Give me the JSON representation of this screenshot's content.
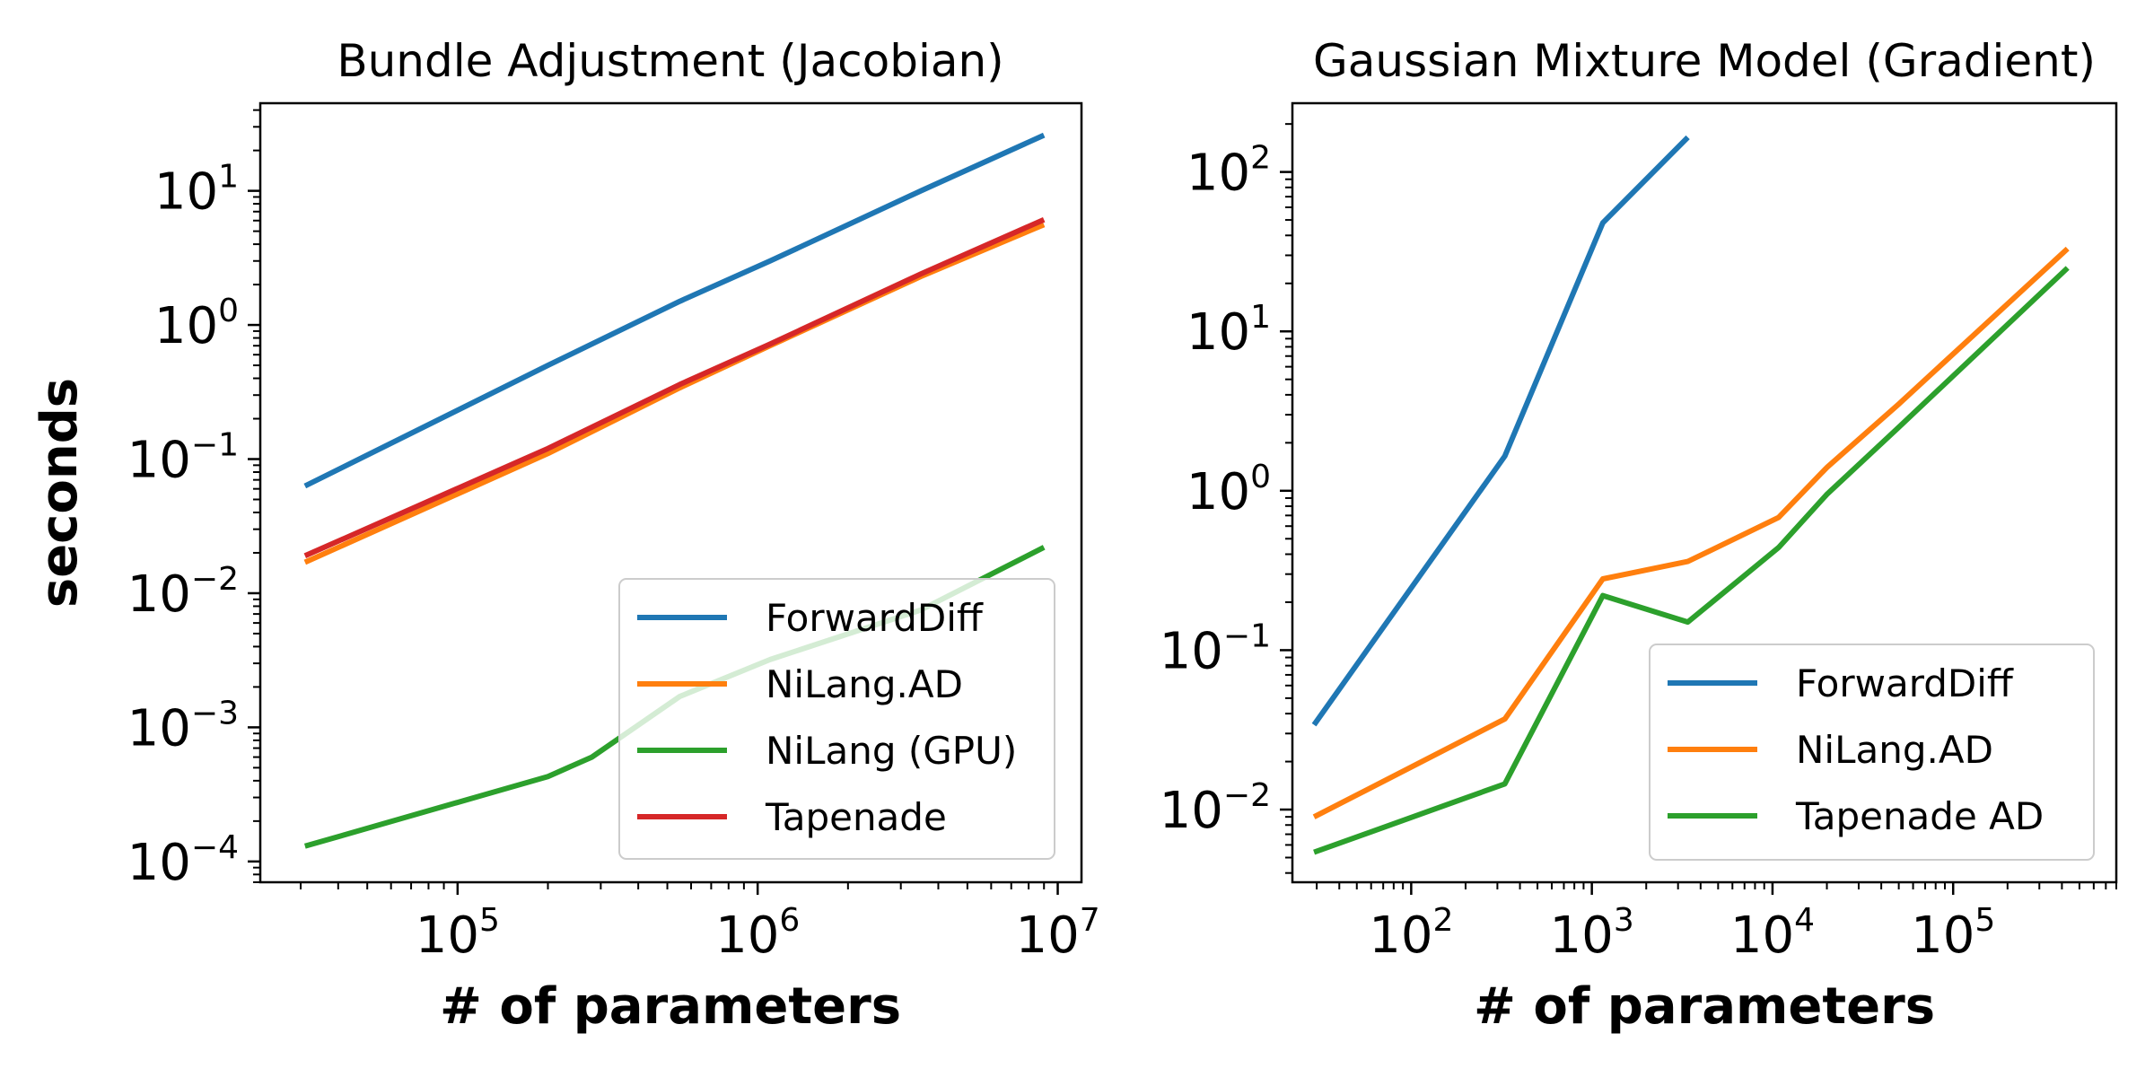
{
  "chart_data": [
    {
      "type": "line",
      "title": "Bundle Adjustment (Jacobian)",
      "xlabel": "# of parameters",
      "ylabel": "seconds",
      "xscale": "log",
      "yscale": "log",
      "xlim": [
        22000,
        12000000
      ],
      "ylim": [
        7e-05,
        45
      ],
      "x_ticks": [
        {
          "base": "10",
          "exp": "5",
          "value": 100000
        },
        {
          "base": "10",
          "exp": "6",
          "value": 1000000
        },
        {
          "base": "10",
          "exp": "7",
          "value": 10000000
        }
      ],
      "y_ticks": [
        {
          "base": "10",
          "exp": "1",
          "value": 10
        },
        {
          "base": "10",
          "exp": "0",
          "value": 1
        },
        {
          "base": "10",
          "exp": "−1",
          "value": 0.1
        },
        {
          "base": "10",
          "exp": "−2",
          "value": 0.01
        },
        {
          "base": "10",
          "exp": "−3",
          "value": 0.001
        },
        {
          "base": "10",
          "exp": "−4",
          "value": 0.0001
        }
      ],
      "legend_position": "lower right",
      "grid": false,
      "series": [
        {
          "name": "ForwardDiff",
          "color": "#1f77b4",
          "x": [
            31000,
            200000,
            550000,
            1100000,
            3500000,
            9000000
          ],
          "y": [
            0.063,
            0.5,
            1.5,
            3.0,
            10.0,
            26.0
          ]
        },
        {
          "name": "NiLang.AD",
          "color": "#ff7f0e",
          "x": [
            31000,
            200000,
            550000,
            1100000,
            3500000,
            9000000
          ],
          "y": [
            0.017,
            0.11,
            0.34,
            0.7,
            2.3,
            5.6
          ]
        },
        {
          "name": "NiLang (GPU)",
          "color": "#2ca02c",
          "x": [
            31000,
            200000,
            280000,
            550000,
            1100000,
            3500000,
            9000000
          ],
          "y": [
            0.00013,
            0.00043,
            0.0006,
            0.0017,
            0.0032,
            0.0075,
            0.022
          ]
        },
        {
          "name": "Tapenade",
          "color": "#d62728",
          "x": [
            31000,
            200000,
            550000,
            1100000,
            3500000,
            9000000
          ],
          "y": [
            0.019,
            0.12,
            0.36,
            0.72,
            2.4,
            6.1
          ]
        }
      ]
    },
    {
      "type": "line",
      "title": "Gaussian Mixture Model (Gradient)",
      "xlabel": "# of parameters",
      "ylabel": "",
      "xscale": "log",
      "yscale": "log",
      "xlim": [
        22,
        800000
      ],
      "ylim": [
        0.0035,
        270
      ],
      "x_ticks": [
        {
          "base": "10",
          "exp": "2",
          "value": 100
        },
        {
          "base": "10",
          "exp": "3",
          "value": 1000
        },
        {
          "base": "10",
          "exp": "4",
          "value": 10000
        },
        {
          "base": "10",
          "exp": "5",
          "value": 100000
        }
      ],
      "y_ticks": [
        {
          "base": "10",
          "exp": "2",
          "value": 100
        },
        {
          "base": "10",
          "exp": "1",
          "value": 10
        },
        {
          "base": "10",
          "exp": "0",
          "value": 1
        },
        {
          "base": "10",
          "exp": "−1",
          "value": 0.1
        },
        {
          "base": "10",
          "exp": "−2",
          "value": 0.01
        }
      ],
      "legend_position": "lower right",
      "grid": false,
      "series": [
        {
          "name": "ForwardDiff",
          "color": "#1f77b4",
          "x": [
            29,
            330,
            1150,
            3400
          ],
          "y": [
            0.034,
            1.65,
            48.0,
            165.0
          ]
        },
        {
          "name": "NiLang.AD",
          "color": "#ff7f0e",
          "x": [
            29,
            330,
            1150,
            3400,
            10800,
            20000,
            50000,
            430000
          ],
          "y": [
            0.009,
            0.037,
            0.28,
            0.36,
            0.68,
            1.4,
            3.5,
            33.0
          ]
        },
        {
          "name": "Tapenade AD",
          "color": "#2ca02c",
          "x": [
            29,
            330,
            1150,
            3400,
            10800,
            20000,
            50000,
            430000
          ],
          "y": [
            0.0054,
            0.0145,
            0.22,
            0.15,
            0.44,
            0.95,
            2.5,
            25.0
          ]
        }
      ]
    }
  ]
}
